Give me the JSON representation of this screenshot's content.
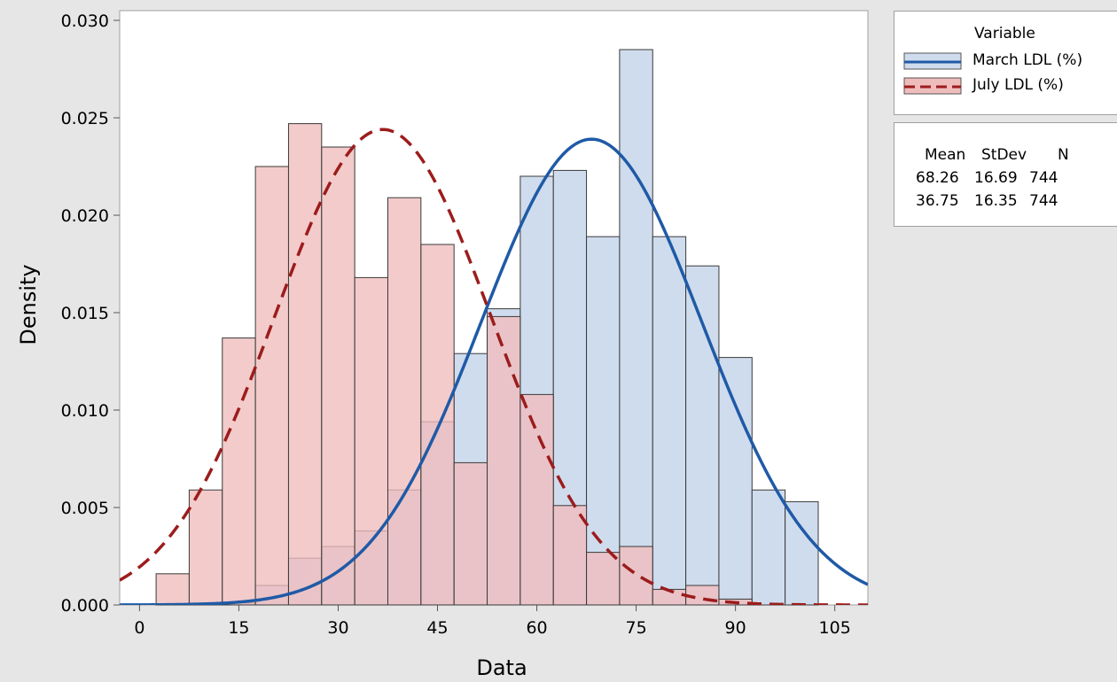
{
  "chart_data": {
    "type": "histogram",
    "xlabel": "Data",
    "ylabel": "Density",
    "xlim": [
      -3,
      110
    ],
    "ylim": [
      0,
      0.0305
    ],
    "xticks": [
      0,
      15,
      30,
      45,
      60,
      75,
      90,
      105
    ],
    "yticks": [
      0.0,
      0.005,
      0.01,
      0.015,
      0.02,
      0.025,
      0.03
    ],
    "ytick_labels": [
      "0.000",
      "0.005",
      "0.010",
      "0.015",
      "0.020",
      "0.025",
      "0.030"
    ],
    "grid": false,
    "bin_width": 5,
    "series": [
      {
        "name": "March LDL (%)",
        "fill": "#cfdcee",
        "line_color": "#1f5aa6",
        "line_style": "solid",
        "bin_starts": [
          7.5,
          12.5,
          17.5,
          22.5,
          27.5,
          32.5,
          37.5,
          42.5,
          47.5,
          52.5,
          57.5,
          62.5,
          67.5,
          72.5,
          77.5,
          82.5,
          87.5,
          92.5,
          97.5
        ],
        "density": [
          0.0001,
          0.0001,
          0.001,
          0.0024,
          0.003,
          0.0038,
          0.0059,
          0.0094,
          0.0129,
          0.0152,
          0.022,
          0.0223,
          0.0189,
          0.0285,
          0.0189,
          0.0174,
          0.0127,
          0.0059,
          0.0053
        ],
        "mean": 68.26,
        "stdev": 16.69,
        "n": 744
      },
      {
        "name": "July LDL (%)",
        "fill": "#efbcbc",
        "line_color": "#9c1c1c",
        "line_style": "dashed",
        "bin_starts": [
          2.5,
          7.5,
          12.5,
          17.5,
          22.5,
          27.5,
          32.5,
          37.5,
          42.5,
          47.5,
          52.5,
          57.5,
          62.5,
          67.5,
          72.5,
          77.5,
          82.5,
          87.5
        ],
        "density": [
          0.0016,
          0.0059,
          0.0137,
          0.0225,
          0.0247,
          0.0235,
          0.0168,
          0.0209,
          0.0185,
          0.0073,
          0.0148,
          0.0108,
          0.0051,
          0.0027,
          0.003,
          0.0008,
          0.001,
          0.0003
        ],
        "mean": 36.75,
        "stdev": 16.35,
        "n": 744
      }
    ],
    "legend": {
      "title": "Variable",
      "position": "right",
      "stats_headers": [
        "Mean",
        "StDev",
        "N"
      ]
    }
  },
  "stats_rows": [
    [
      "68.26",
      "16.69",
      "744"
    ],
    [
      "36.75",
      "16.35",
      "744"
    ]
  ]
}
